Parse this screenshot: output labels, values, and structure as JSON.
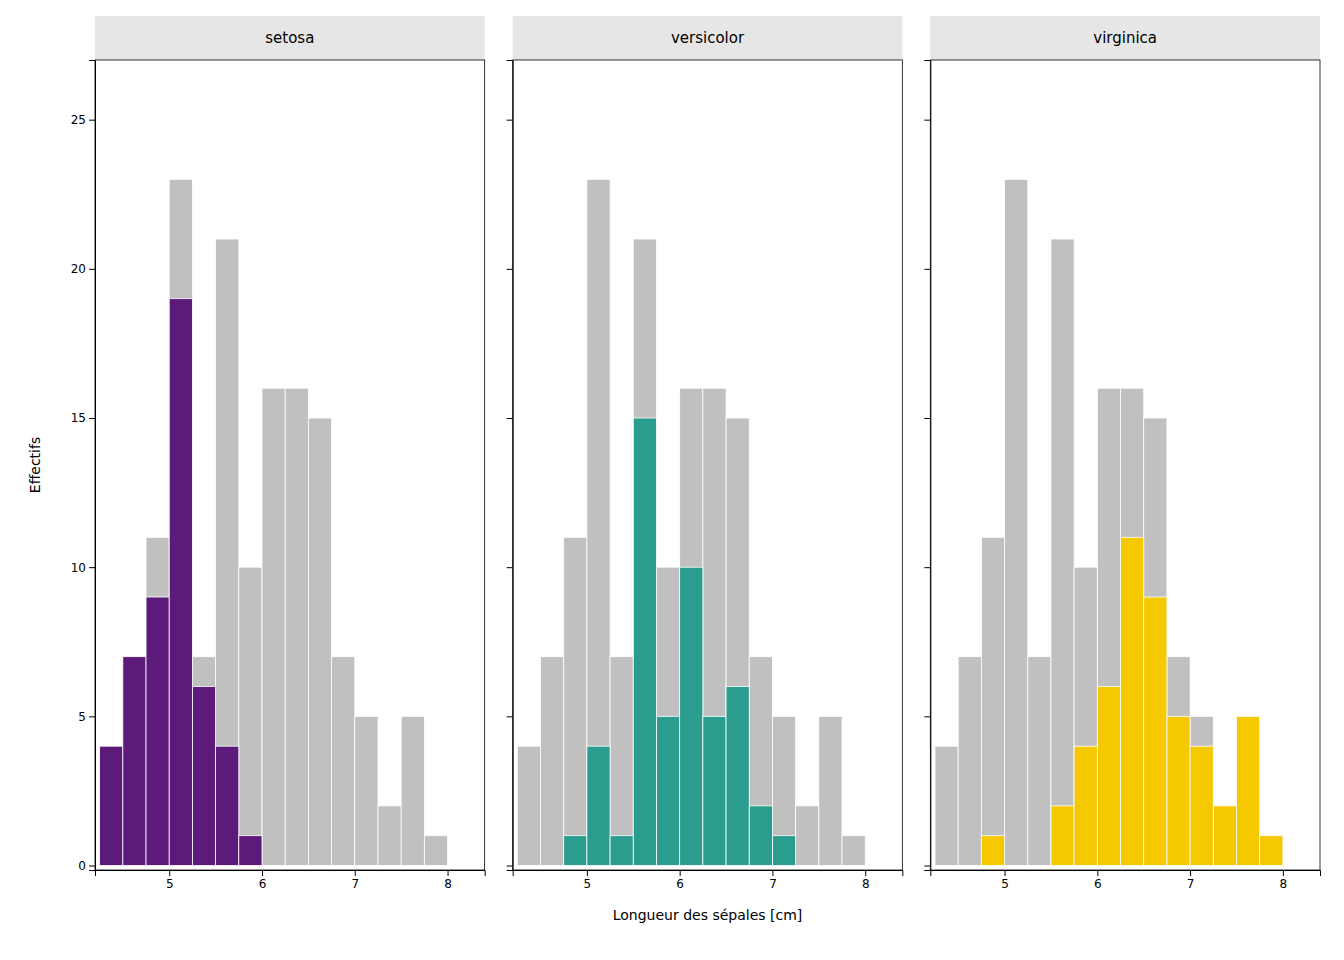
{
  "chart_data": [
    {
      "type": "histogram",
      "title": "setosa",
      "bins": [
        4,
        4.25,
        4.5,
        4.75,
        5,
        5.25,
        5.5,
        5.75,
        6,
        6.25,
        6.5,
        6.75,
        7,
        7.25,
        7.5,
        7.75,
        8,
        8.25,
        8.5
      ],
      "series": [
        {
          "color": "#c0c0c0",
          "values": [
            0,
            4,
            7,
            11,
            23,
            7,
            21,
            10,
            16,
            16,
            15,
            7,
            5,
            2,
            5,
            1,
            0,
            0
          ]
        },
        {
          "color": "#5c1a7a",
          "values": [
            0,
            4,
            7,
            9,
            19,
            6,
            4,
            1,
            0,
            0,
            0,
            0,
            0,
            0,
            0,
            0,
            0,
            0
          ]
        }
      ],
      "ylabel": "Effectifs",
      "xlim": [
        4.2,
        8.4
      ],
      "ylim": [
        -0.15,
        27
      ],
      "xticks": [
        5,
        6,
        7,
        8
      ],
      "yticks": [
        0,
        5,
        10,
        15,
        20,
        25
      ],
      "grid": false
    },
    {
      "type": "histogram",
      "title": "versicolor",
      "bins": [
        4,
        4.25,
        4.5,
        4.75,
        5,
        5.25,
        5.5,
        5.75,
        6,
        6.25,
        6.5,
        6.75,
        7,
        7.25,
        7.5,
        7.75,
        8,
        8.25,
        8.5
      ],
      "series": [
        {
          "color": "#c0c0c0",
          "values": [
            0,
            4,
            7,
            11,
            23,
            7,
            21,
            10,
            16,
            16,
            15,
            7,
            5,
            2,
            5,
            1,
            0,
            0
          ]
        },
        {
          "color": "#2a9d8f",
          "values": [
            0,
            0,
            0,
            1,
            4,
            1,
            15,
            5,
            10,
            5,
            6,
            2,
            1,
            0,
            0,
            0,
            0,
            0
          ]
        }
      ],
      "xlabel": "Longueur des sépales  [cm]",
      "xlim": [
        4.2,
        8.4
      ],
      "ylim": [
        -0.15,
        27
      ],
      "xticks": [
        5,
        6,
        7,
        8
      ],
      "yticks": [
        0,
        5,
        10,
        15,
        20,
        25
      ],
      "tick_labels": "x",
      "grid": false
    },
    {
      "type": "histogram",
      "title": "virginica",
      "bins": [
        4,
        4.25,
        4.5,
        4.75,
        5,
        5.25,
        5.5,
        5.75,
        6,
        6.25,
        6.5,
        6.75,
        7,
        7.25,
        7.5,
        7.75,
        8,
        8.25,
        8.5
      ],
      "series": [
        {
          "color": "#c0c0c0",
          "values": [
            0,
            4,
            7,
            11,
            23,
            7,
            21,
            10,
            16,
            16,
            15,
            7,
            5,
            2,
            5,
            1,
            0,
            0
          ]
        },
        {
          "color": "#f5c800",
          "values": [
            0,
            0,
            0,
            1,
            0,
            0,
            2,
            4,
            6,
            11,
            9,
            5,
            4,
            2,
            5,
            1,
            0,
            0
          ]
        }
      ],
      "xlim": [
        4.2,
        8.4
      ],
      "ylim": [
        -0.15,
        27
      ],
      "xticks": [
        5,
        6,
        7,
        8
      ],
      "yticks": [
        0,
        5,
        10,
        15,
        20,
        25
      ],
      "tick_labels": "x",
      "grid": false
    }
  ]
}
